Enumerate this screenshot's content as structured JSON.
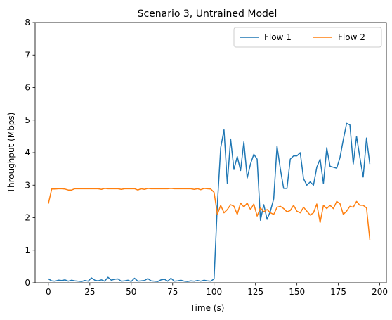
{
  "chart_data": {
    "type": "line",
    "title": "Scenario 3, Untrained Model",
    "xlabel": "Time (s)",
    "ylabel": "Throughput (Mbps)",
    "xlim": [
      -8,
      204
    ],
    "ylim": [
      0,
      8
    ],
    "xticks": [
      0,
      25,
      50,
      75,
      100,
      125,
      150,
      175,
      200
    ],
    "yticks": [
      0,
      1,
      2,
      3,
      4,
      5,
      6,
      7,
      8
    ],
    "grid": false,
    "legend": {
      "placement": "top-right",
      "columns": 2
    },
    "x": [
      0,
      2,
      4,
      6,
      8,
      10,
      12,
      14,
      16,
      18,
      20,
      22,
      24,
      26,
      28,
      30,
      32,
      34,
      36,
      38,
      40,
      42,
      44,
      46,
      48,
      50,
      52,
      54,
      56,
      58,
      60,
      62,
      64,
      66,
      68,
      70,
      72,
      74,
      76,
      78,
      80,
      82,
      84,
      86,
      88,
      90,
      92,
      94,
      96,
      98,
      100,
      102,
      104,
      106,
      108,
      110,
      112,
      114,
      116,
      118,
      120,
      122,
      124,
      126,
      128,
      130,
      132,
      134,
      136,
      138,
      140,
      142,
      144,
      146,
      148,
      150,
      152,
      154,
      156,
      158,
      160,
      162,
      164,
      166,
      168,
      170,
      172,
      174,
      176,
      178,
      180,
      182,
      184,
      186,
      188,
      190,
      192,
      194
    ],
    "series": [
      {
        "name": "Flow 1",
        "color": "#1f77b4",
        "values": [
          0.12,
          0.06,
          0.05,
          0.08,
          0.07,
          0.09,
          0.05,
          0.08,
          0.06,
          0.05,
          0.04,
          0.07,
          0.05,
          0.15,
          0.08,
          0.06,
          0.09,
          0.05,
          0.17,
          0.08,
          0.11,
          0.12,
          0.05,
          0.06,
          0.08,
          0.04,
          0.14,
          0.05,
          0.06,
          0.07,
          0.13,
          0.06,
          0.05,
          0.04,
          0.09,
          0.11,
          0.05,
          0.14,
          0.05,
          0.06,
          0.08,
          0.05,
          0.04,
          0.06,
          0.05,
          0.07,
          0.05,
          0.08,
          0.06,
          0.05,
          0.12,
          2.4,
          4.15,
          4.7,
          3.05,
          4.42,
          3.48,
          3.88,
          3.45,
          4.33,
          3.22,
          3.65,
          3.95,
          3.8,
          1.92,
          2.4,
          1.95,
          2.2,
          2.58,
          4.2,
          3.5,
          2.9,
          2.9,
          3.8,
          3.9,
          3.9,
          4.0,
          3.2,
          3.0,
          3.1,
          3.0,
          3.55,
          3.8,
          3.05,
          4.15,
          3.58,
          3.55,
          3.52,
          3.85,
          4.4,
          4.9,
          4.85,
          3.65,
          4.5,
          3.85,
          3.25,
          4.45,
          3.65
        ]
      },
      {
        "name": "Flow 2",
        "color": "#ff7f0e",
        "values": [
          2.43,
          2.88,
          2.88,
          2.89,
          2.89,
          2.88,
          2.85,
          2.85,
          2.89,
          2.89,
          2.89,
          2.89,
          2.89,
          2.89,
          2.89,
          2.89,
          2.87,
          2.9,
          2.89,
          2.89,
          2.89,
          2.89,
          2.87,
          2.89,
          2.89,
          2.89,
          2.89,
          2.85,
          2.89,
          2.87,
          2.9,
          2.89,
          2.89,
          2.89,
          2.89,
          2.89,
          2.89,
          2.9,
          2.89,
          2.89,
          2.89,
          2.89,
          2.89,
          2.89,
          2.87,
          2.89,
          2.86,
          2.9,
          2.89,
          2.88,
          2.78,
          2.1,
          2.38,
          2.15,
          2.25,
          2.4,
          2.35,
          2.1,
          2.45,
          2.33,
          2.45,
          2.25,
          2.42,
          2.05,
          2.3,
          2.18,
          2.25,
          2.15,
          2.1,
          2.32,
          2.35,
          2.28,
          2.18,
          2.22,
          2.38,
          2.2,
          2.15,
          2.32,
          2.2,
          2.08,
          2.15,
          2.42,
          1.85,
          2.38,
          2.28,
          2.38,
          2.28,
          2.5,
          2.43,
          2.1,
          2.2,
          2.35,
          2.32,
          2.5,
          2.38,
          2.38,
          2.3,
          1.32
        ]
      }
    ]
  }
}
